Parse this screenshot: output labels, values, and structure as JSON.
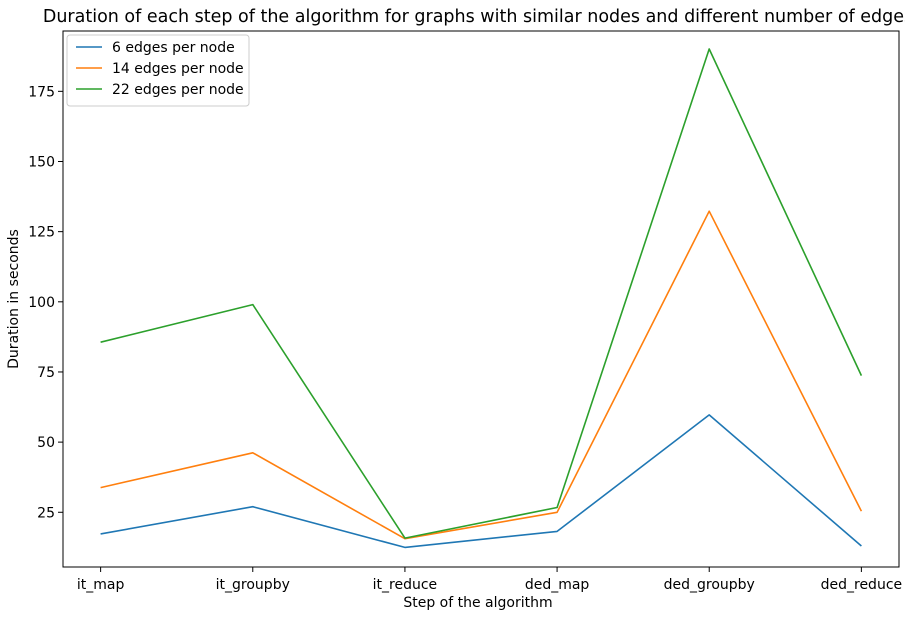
{
  "chart_data": {
    "type": "line",
    "title": "Duration of each step of the algorithm for graphs with similar nodes and different number of edges",
    "xlabel": "Step of the algorithm",
    "ylabel": "Duration in seconds",
    "categories": [
      "it_map",
      "it_groupby",
      "it_reduce",
      "ded_map",
      "ded_groupby",
      "ded_reduce"
    ],
    "ylim": [
      5.5,
      196.5
    ],
    "yticks": [
      25,
      50,
      75,
      100,
      125,
      150,
      175
    ],
    "grid": false,
    "legend_position": "top-left",
    "series": [
      {
        "name": "6 edges per node",
        "color": "#1f77b4",
        "values": [
          17.3,
          27.0,
          12.5,
          18.2,
          59.7,
          13.0
        ]
      },
      {
        "name": "14 edges per node",
        "color": "#ff7f0e",
        "values": [
          33.8,
          46.2,
          15.6,
          25.0,
          132.3,
          25.4
        ]
      },
      {
        "name": "22 edges per node",
        "color": "#2ca02c",
        "values": [
          85.6,
          99.0,
          15.8,
          26.7,
          190.1,
          73.7
        ]
      }
    ]
  }
}
